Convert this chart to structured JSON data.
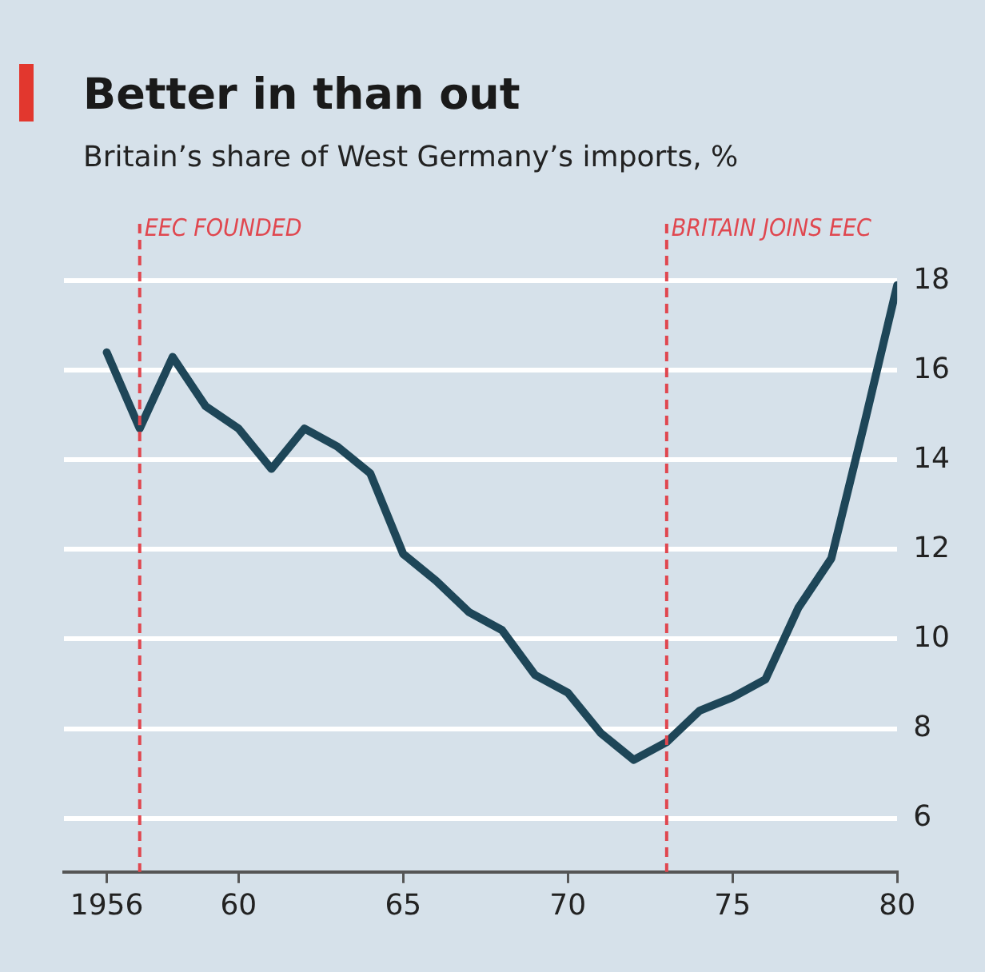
{
  "chart_data": {
    "type": "line",
    "title": "Better in than out",
    "subtitle": "Britain’s share of West Germany’s imports, %",
    "x": [
      1956,
      1957,
      1958,
      1959,
      1960,
      1961,
      1962,
      1963,
      1964,
      1965,
      1966,
      1967,
      1968,
      1969,
      1970,
      1971,
      1972,
      1973,
      1974,
      1975,
      1976,
      1977,
      1978,
      1979,
      1980
    ],
    "series": [
      {
        "color": "#1e4658",
        "values": [
          16.4,
          14.7,
          16.3,
          15.2,
          14.7,
          13.8,
          14.7,
          14.3,
          13.7,
          11.9,
          11.3,
          10.6,
          10.2,
          9.2,
          8.8,
          7.9,
          7.3,
          7.7,
          8.4,
          8.7,
          9.1,
          10.7,
          11.8,
          14.8,
          17.9
        ]
      }
    ],
    "xlim": [
      1954.7,
      1980
    ],
    "xticks": [
      1956,
      {
        "value": 1960,
        "label": "60"
      },
      {
        "value": 1965,
        "label": "65"
      },
      {
        "value": 1970,
        "label": "70"
      },
      {
        "value": 1975,
        "label": "75"
      },
      {
        "value": 1980,
        "label": "80"
      }
    ],
    "ylim": [
      4.8,
      19.2
    ],
    "yticks": [
      6,
      8,
      10,
      12,
      14,
      16,
      18
    ],
    "ref_lines": [
      {
        "axis": "x",
        "value": 1957,
        "label": "EEC FOUNDED",
        "color": "#e0474f",
        "line_style": "dashed"
      },
      {
        "axis": "x",
        "value": 1973,
        "label": "BRITAIN JOINS EEC",
        "color": "#e0474f",
        "line_style": "dashed"
      }
    ],
    "grid": "y",
    "legend": false,
    "marker": "none",
    "line_style": "solid"
  }
}
